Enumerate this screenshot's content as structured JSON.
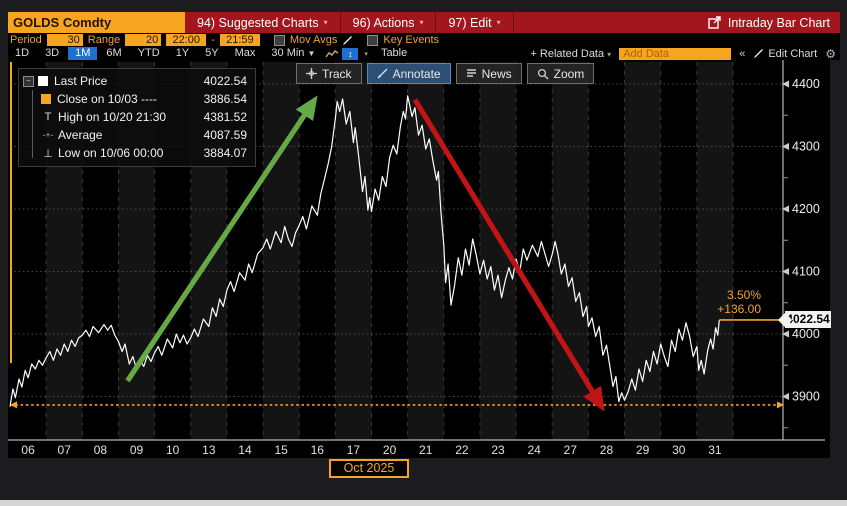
{
  "header": {
    "security": "GOLDS Comdty",
    "menus": [
      {
        "label": "94) Suggested Charts"
      },
      {
        "label": "96) Actions"
      },
      {
        "label": "97) Edit"
      }
    ],
    "title_right": "Intraday Bar Chart"
  },
  "settings_bar": {
    "period_label": "Period",
    "period_value": "30",
    "range_label": "Range",
    "range_value": "20",
    "time_from": "22:00",
    "dash": "-",
    "time_to": "21:59",
    "mov_avgs_label": "Mov Avgs",
    "key_events_label": "Key Events"
  },
  "period_tabs": {
    "items": [
      "1D",
      "3D",
      "1M",
      "6M",
      "YTD",
      "1Y",
      "5Y",
      "Max"
    ],
    "selected": "1M",
    "interval": "30 Min",
    "table_label": "Table",
    "related_data_label": "+ Related Data",
    "add_data_placeholder": "Add Data",
    "collapse_label": "«",
    "edit_chart_label": "Edit Chart"
  },
  "chart_toolbar": {
    "track_label": "Track",
    "annotate_label": "Annotate",
    "news_label": "News",
    "zoom_label": "Zoom",
    "active": "Annotate"
  },
  "legend": {
    "rows": [
      {
        "label": "Last Price",
        "value": "4022.54"
      },
      {
        "label": "Close on 10/03 ----",
        "value": "3886.54"
      },
      {
        "label": "High on 10/20 21:30",
        "value": "4381.52"
      },
      {
        "label": "Average",
        "value": "4087.59"
      },
      {
        "label": "Low on 10/06 00:00",
        "value": "3884.07"
      }
    ]
  },
  "annotations": {
    "pct_change": "3.50%",
    "net_change": "+136.00",
    "last_price_badge": "4022.54",
    "month_label": "Oct 2025"
  },
  "colors": {
    "accent_orange": "#f7a521",
    "menubar_red": "#a3161d",
    "selected_blue": "#1f6fd0",
    "green_arrow": "#67a847",
    "red_arrow": "#c11414",
    "price_line": "#ffffff",
    "band_shade": "#141414",
    "grid": "#4a4a4a",
    "axis": "#b8b8b8"
  },
  "chart_data": {
    "type": "line",
    "title": "GOLDS Comdty - Intraday Bar Chart - Oct 2025",
    "x_labels": [
      "06",
      "07",
      "08",
      "09",
      "10",
      "13",
      "14",
      "15",
      "16",
      "17",
      "20",
      "21",
      "22",
      "23",
      "24",
      "27",
      "28",
      "29",
      "30",
      "31"
    ],
    "y_ticks": [
      3900,
      4000,
      4100,
      4200,
      4300,
      4400
    ],
    "y_minor_ticks": [
      3850,
      3950,
      4050,
      4150,
      4250,
      4350
    ],
    "ylim": [
      3830.4,
      4438.4
    ],
    "last_price": 4022.54,
    "close_price": 3886.54,
    "high": 4381.52,
    "average": 4087.59,
    "low": 3884.07,
    "series": [
      {
        "name": "Last Price",
        "points": [
          [
            0,
            3884
          ],
          [
            0.08,
            3912
          ],
          [
            0.15,
            3898
          ],
          [
            0.25,
            3928
          ],
          [
            0.33,
            3915
          ],
          [
            0.42,
            3942
          ],
          [
            0.5,
            3930
          ],
          [
            0.6,
            3952
          ],
          [
            0.7,
            3944
          ],
          [
            0.8,
            3958
          ],
          [
            0.9,
            3950
          ],
          [
            1,
            3962
          ],
          [
            1.1,
            3972
          ],
          [
            1.2,
            3958
          ],
          [
            1.3,
            3976
          ],
          [
            1.4,
            3966
          ],
          [
            1.5,
            3984
          ],
          [
            1.6,
            3972
          ],
          [
            1.7,
            3990
          ],
          [
            1.8,
            3980
          ],
          [
            1.9,
            3994
          ],
          [
            2,
            3998
          ],
          [
            2.1,
            4006
          ],
          [
            2.2,
            3996
          ],
          [
            2.3,
            4012
          ],
          [
            2.45,
            4002
          ],
          [
            2.6,
            4015
          ],
          [
            2.7,
            4006
          ],
          [
            2.8,
            4014
          ],
          [
            2.9,
            3998
          ],
          [
            3,
            3988
          ],
          [
            3.1,
            3972
          ],
          [
            3.18,
            3984
          ],
          [
            3.3,
            3952
          ],
          [
            3.4,
            3964
          ],
          [
            3.5,
            3944
          ],
          [
            3.6,
            3958
          ],
          [
            3.7,
            3948
          ],
          [
            3.8,
            3966
          ],
          [
            3.9,
            3956
          ],
          [
            4,
            3970
          ],
          [
            4.1,
            3980
          ],
          [
            4.2,
            3966
          ],
          [
            4.35,
            3992
          ],
          [
            4.5,
            3978
          ],
          [
            4.6,
            4000
          ],
          [
            4.7,
            3986
          ],
          [
            4.8,
            3998
          ],
          [
            4.9,
            3984
          ],
          [
            5,
            3994
          ],
          [
            5.1,
            4008
          ],
          [
            5.2,
            3996
          ],
          [
            5.35,
            4024
          ],
          [
            5.5,
            4012
          ],
          [
            5.6,
            4042
          ],
          [
            5.7,
            4028
          ],
          [
            5.8,
            4056
          ],
          [
            5.9,
            4044
          ],
          [
            6,
            4070
          ],
          [
            6.1,
            4084
          ],
          [
            6.2,
            4068
          ],
          [
            6.35,
            4098
          ],
          [
            6.5,
            4086
          ],
          [
            6.6,
            4112
          ],
          [
            6.7,
            4098
          ],
          [
            6.85,
            4128
          ],
          [
            7,
            4138
          ],
          [
            7.1,
            4152
          ],
          [
            7.2,
            4136
          ],
          [
            7.35,
            4164
          ],
          [
            7.5,
            4146
          ],
          [
            7.6,
            4172
          ],
          [
            7.7,
            4152
          ],
          [
            7.8,
            4140
          ],
          [
            7.9,
            4162
          ],
          [
            8,
            4174
          ],
          [
            8.1,
            4188
          ],
          [
            8.2,
            4168
          ],
          [
            8.35,
            4205
          ],
          [
            8.5,
            4190
          ],
          [
            8.6,
            4225
          ],
          [
            8.7,
            4248
          ],
          [
            8.8,
            4272
          ],
          [
            8.9,
            4300
          ],
          [
            9,
            4344
          ],
          [
            9.05,
            4372
          ],
          [
            9.12,
            4356
          ],
          [
            9.2,
            4376
          ],
          [
            9.3,
            4336
          ],
          [
            9.4,
            4356
          ],
          [
            9.5,
            4306
          ],
          [
            9.55,
            4330
          ],
          [
            9.65,
            4282
          ],
          [
            9.75,
            4228
          ],
          [
            9.82,
            4252
          ],
          [
            9.9,
            4198
          ],
          [
            9.95,
            4218
          ],
          [
            10,
            4196
          ],
          [
            10.1,
            4232
          ],
          [
            10.2,
            4214
          ],
          [
            10.3,
            4252
          ],
          [
            10.4,
            4236
          ],
          [
            10.5,
            4282
          ],
          [
            10.6,
            4302
          ],
          [
            10.7,
            4288
          ],
          [
            10.8,
            4332
          ],
          [
            10.88,
            4356
          ],
          [
            10.94,
            4344
          ],
          [
            11,
            4381
          ],
          [
            11.05,
            4368
          ],
          [
            11.12,
            4348
          ],
          [
            11.2,
            4362
          ],
          [
            11.3,
            4318
          ],
          [
            11.4,
            4334
          ],
          [
            11.5,
            4296
          ],
          [
            11.6,
            4312
          ],
          [
            11.7,
            4276
          ],
          [
            11.8,
            4246
          ],
          [
            11.85,
            4260
          ],
          [
            11.92,
            4196
          ],
          [
            12,
            4142
          ],
          [
            12.05,
            4082
          ],
          [
            12.12,
            4112
          ],
          [
            12.2,
            4046
          ],
          [
            12.3,
            4078
          ],
          [
            12.4,
            4122
          ],
          [
            12.5,
            4094
          ],
          [
            12.6,
            4136
          ],
          [
            12.7,
            4110
          ],
          [
            12.8,
            4152
          ],
          [
            12.9,
            4126
          ],
          [
            13,
            4096
          ],
          [
            13.1,
            4118
          ],
          [
            13.2,
            4088
          ],
          [
            13.3,
            4108
          ],
          [
            13.4,
            4070
          ],
          [
            13.5,
            4094
          ],
          [
            13.6,
            4058
          ],
          [
            13.7,
            4086
          ],
          [
            13.8,
            4106
          ],
          [
            13.9,
            4088
          ],
          [
            14,
            4120
          ],
          [
            14.1,
            4100
          ],
          [
            14.2,
            4136
          ],
          [
            14.3,
            4118
          ],
          [
            14.45,
            4142
          ],
          [
            14.6,
            4124
          ],
          [
            14.7,
            4148
          ],
          [
            14.8,
            4128
          ],
          [
            14.9,
            4108
          ],
          [
            15,
            4128
          ],
          [
            15.08,
            4148
          ],
          [
            15.15,
            4130
          ],
          [
            15.25,
            4096
          ],
          [
            15.35,
            4112
          ],
          [
            15.45,
            4076
          ],
          [
            15.55,
            4090
          ],
          [
            15.65,
            4052
          ],
          [
            15.75,
            4066
          ],
          [
            15.85,
            4028
          ],
          [
            15.95,
            4044
          ],
          [
            16,
            4012
          ],
          [
            16.1,
            4026
          ],
          [
            16.2,
            3996
          ],
          [
            16.3,
            4012
          ],
          [
            16.4,
            3966
          ],
          [
            16.5,
            3982
          ],
          [
            16.6,
            3946
          ],
          [
            16.68,
            3916
          ],
          [
            16.76,
            3932
          ],
          [
            16.84,
            3892
          ],
          [
            16.92,
            3906
          ],
          [
            17,
            3894
          ],
          [
            17.1,
            3908
          ],
          [
            17.2,
            3928
          ],
          [
            17.3,
            3910
          ],
          [
            17.4,
            3944
          ],
          [
            17.5,
            3924
          ],
          [
            17.6,
            3958
          ],
          [
            17.7,
            3940
          ],
          [
            17.8,
            3972
          ],
          [
            17.9,
            3952
          ],
          [
            18,
            3984
          ],
          [
            18.1,
            3964
          ],
          [
            18.2,
            3948
          ],
          [
            18.3,
            3990
          ],
          [
            18.4,
            3972
          ],
          [
            18.5,
            4008
          ],
          [
            18.6,
            3990
          ],
          [
            18.7,
            4018
          ],
          [
            18.8,
            3996
          ],
          [
            18.9,
            3964
          ],
          [
            19,
            3980
          ],
          [
            19.05,
            3942
          ],
          [
            19.12,
            3958
          ],
          [
            19.2,
            3936
          ],
          [
            19.3,
            3974
          ],
          [
            19.38,
            3992
          ],
          [
            19.45,
            3976
          ],
          [
            19.52,
            4010
          ],
          [
            19.58,
            3998
          ],
          [
            19.62,
            4022.54
          ]
        ]
      }
    ],
    "arrows": [
      {
        "name": "uptrend-arrow",
        "color": "#67a847",
        "from": [
          3.25,
          3925
        ],
        "to": [
          8.35,
          4368
        ]
      },
      {
        "name": "downtrend-arrow",
        "color": "#c11414",
        "from": [
          11.2,
          4375
        ],
        "to": [
          16.3,
          3890
        ]
      }
    ],
    "legend_position": "top-left",
    "grid": true
  }
}
